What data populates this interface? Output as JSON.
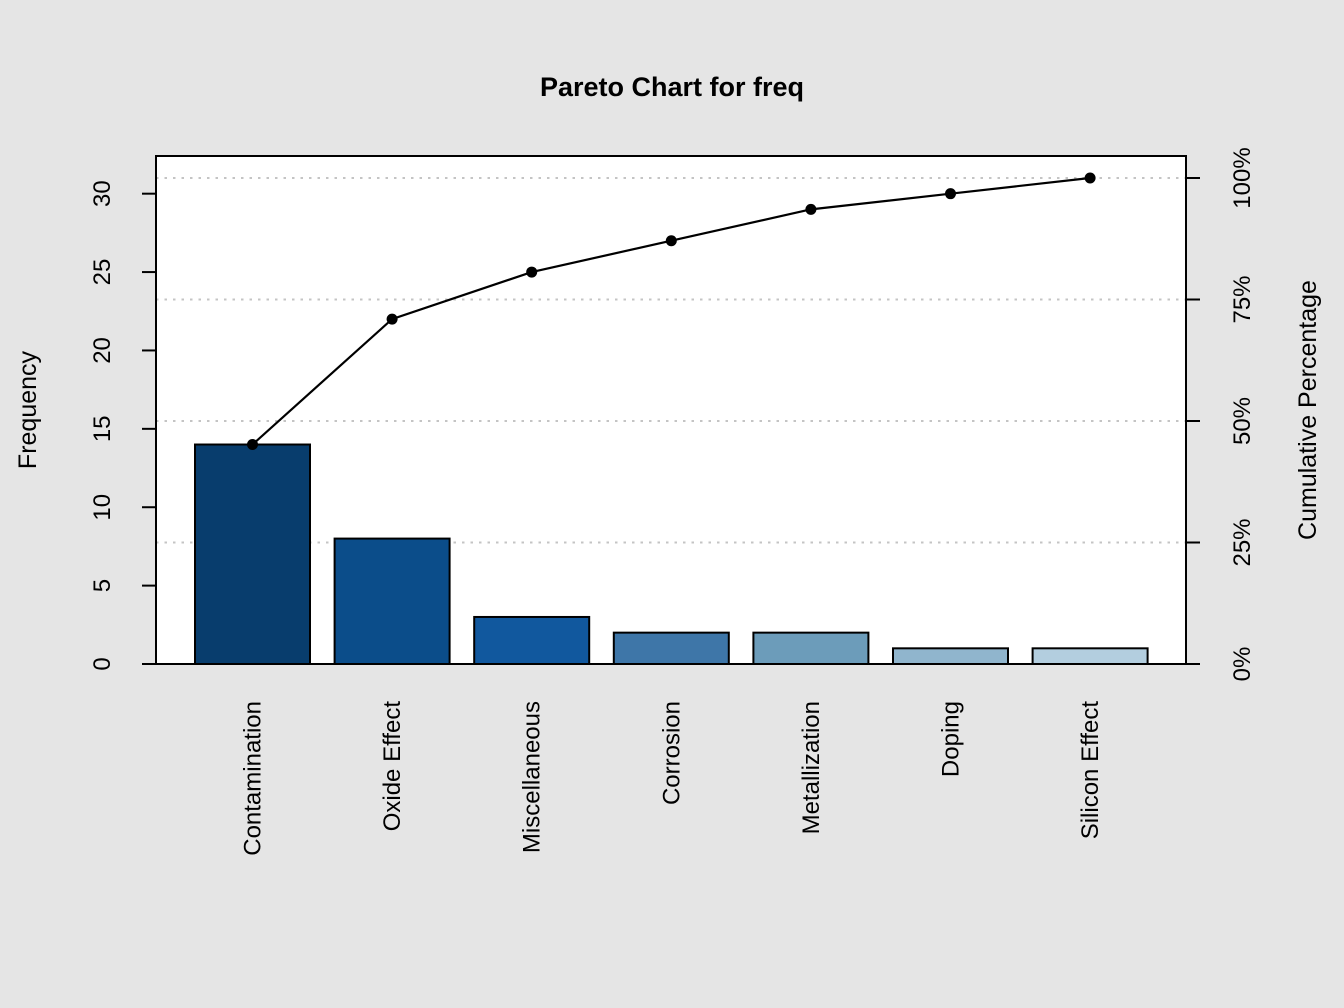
{
  "title": "Pareto Chart for freq",
  "chart_data": {
    "type": "bar",
    "subtype": "pareto-chart-with-cumulative-line",
    "title": "Pareto Chart for freq",
    "categories": [
      "Contamination",
      "Oxide Effect",
      "Miscellaneous",
      "Corrosion",
      "Metallization",
      "Doping",
      "Silicon Effect"
    ],
    "values": [
      14,
      8,
      3,
      2,
      2,
      1,
      1
    ],
    "total": 31,
    "cumulative": {
      "frequencies": [
        14,
        22,
        25,
        27,
        29,
        30,
        31
      ],
      "percentages": [
        45.2,
        71.0,
        80.6,
        87.1,
        93.5,
        96.8,
        100.0
      ]
    },
    "axes": {
      "left": {
        "label": "Frequency",
        "ticks": [
          0,
          5,
          10,
          15,
          20,
          25,
          30
        ],
        "range": [
          0,
          32.5
        ]
      },
      "right": {
        "label": "Cumulative Percentage",
        "tick_labels": [
          "0%",
          "25%",
          "50%",
          "75%",
          "100%"
        ],
        "tick_values": [
          0,
          25,
          50,
          75,
          100
        ]
      }
    },
    "grid": {
      "style": "dotted",
      "orientation": "horizontal",
      "at_percent": [
        25,
        50,
        75,
        100
      ],
      "color": "#C4C4C4"
    },
    "legend": null,
    "bar_colors": [
      "#083D6D",
      "#0B4D8A",
      "#11589E",
      "#3E76A8",
      "#6C9CBA",
      "#90B5CD",
      "#B3CEDF"
    ],
    "bar_border_color": "#000000",
    "line_color": "#000000",
    "marker": "filled-circle",
    "background_color": "#E5E5E5",
    "plot_background_color": "#FFFFFF"
  }
}
